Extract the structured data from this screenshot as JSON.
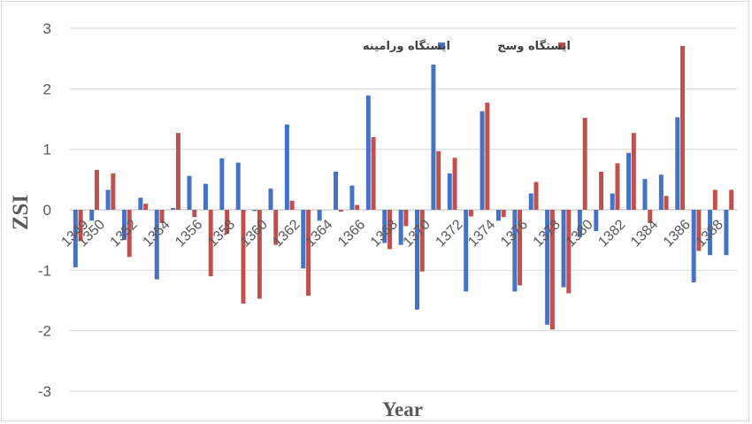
{
  "chart_data": {
    "type": "bar",
    "title": "",
    "xlabel": "Year",
    "ylabel": "ZSI",
    "ylim": [
      -3,
      3
    ],
    "yticks": [
      -3,
      -2,
      -1,
      0,
      1,
      2,
      3
    ],
    "grid": true,
    "legend_position": "top-right",
    "categories": [
      "1349",
      "1350",
      "1351",
      "1352",
      "1353",
      "1354",
      "1355",
      "1356",
      "1357",
      "1358",
      "1359",
      "1360",
      "1361",
      "1362",
      "1363",
      "1364",
      "1365",
      "1366",
      "1367",
      "1368",
      "1369",
      "1370",
      "1371",
      "1372",
      "1373",
      "1374",
      "1375",
      "1376",
      "1377",
      "1378",
      "1379",
      "1380",
      "1381",
      "1382",
      "1383",
      "1384",
      "1385",
      "1386",
      "1387",
      "1388",
      "1389"
    ],
    "tick_labels": [
      "1349",
      "1350",
      "1352",
      "1354",
      "1356",
      "1358",
      "1360",
      "1362",
      "1364",
      "1366",
      "1368",
      "1370",
      "1372",
      "1374",
      "1376",
      "1378",
      "1380",
      "1382",
      "1384",
      "1386",
      "1388"
    ],
    "series": [
      {
        "name": "ایستگاه ورامینه",
        "color": "#4472C4",
        "values": [
          -0.95,
          -0.18,
          0.33,
          -0.5,
          0.2,
          -1.15,
          0.03,
          0.56,
          0.43,
          0.85,
          0.78,
          -0.02,
          0.35,
          1.41,
          -0.97,
          -0.18,
          0.63,
          0.4,
          1.89,
          -0.55,
          -0.58,
          -1.65,
          2.4,
          0.6,
          -1.35,
          1.63,
          -0.18,
          -1.35,
          0.27,
          -1.9,
          -1.28,
          -0.45,
          -0.35,
          0.27,
          0.94,
          0.51,
          0.58,
          1.53,
          -1.2,
          -0.75,
          -0.75
        ]
      },
      {
        "name": "ایستگاه وسج",
        "color": "#C0504D",
        "values": [
          -0.52,
          0.66,
          0.6,
          -0.78,
          0.1,
          -0.22,
          1.27,
          -0.12,
          -1.1,
          -0.4,
          -1.55,
          -1.47,
          -0.58,
          0.15,
          -1.42,
          0,
          -0.03,
          0.08,
          1.2,
          -0.65,
          -0.27,
          -1.02,
          0.97,
          0.86,
          -0.11,
          1.77,
          -0.12,
          -1.25,
          0.46,
          -1.98,
          -1.38,
          1.52,
          0.63,
          0.77,
          1.27,
          -0.22,
          0.23,
          2.71,
          -0.68,
          0.33,
          0.33
        ]
      }
    ]
  }
}
